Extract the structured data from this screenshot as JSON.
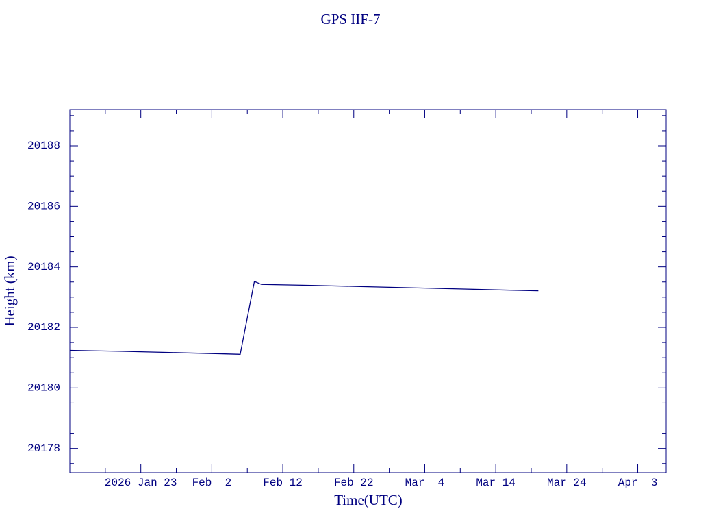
{
  "chart_data": {
    "type": "line",
    "title": "GPS IIF-7",
    "xlabel": "Time(UTC)",
    "ylabel": "Height (km)",
    "x": [
      "2026-01-13",
      "2026-01-20",
      "2026-01-27",
      "2026-02-03",
      "2026-02-06",
      "2026-02-08",
      "2026-02-09",
      "2026-02-16",
      "2026-02-23",
      "2026-03-02",
      "2026-03-09",
      "2026-03-16",
      "2026-03-20"
    ],
    "series": [
      {
        "color": "#000080",
        "values": [
          20181.24,
          20181.21,
          20181.17,
          20181.13,
          20181.11,
          20183.52,
          20183.42,
          20183.39,
          20183.35,
          20183.31,
          20183.27,
          20183.23,
          20183.21
        ]
      }
    ],
    "xlim": [
      "2026-01-13",
      "2026-04-07"
    ],
    "xticks": [
      {
        "value": "2026-01-23",
        "label": "2026 Jan 23"
      },
      {
        "value": "2026-02-02",
        "label": "Feb  2"
      },
      {
        "value": "2026-02-12",
        "label": "Feb 12"
      },
      {
        "value": "2026-02-22",
        "label": "Feb 22"
      },
      {
        "value": "2026-03-04",
        "label": "Mar  4"
      },
      {
        "value": "2026-03-14",
        "label": "Mar 14"
      },
      {
        "value": "2026-03-24",
        "label": "Mar 24"
      },
      {
        "value": "2026-04-03",
        "label": "Apr  3"
      }
    ],
    "xminorticks": [
      "2026-01-18",
      "2026-01-28",
      "2026-02-07",
      "2026-02-17",
      "2026-02-27",
      "2026-03-09",
      "2026-03-19",
      "2026-03-29"
    ],
    "ylim": [
      20177.2,
      20189.2
    ],
    "yticks": [
      20178,
      20180,
      20182,
      20184,
      20186,
      20188
    ],
    "yminorticks": [
      20177.5,
      20178.5,
      20179,
      20179.5,
      20180.5,
      20181,
      20181.5,
      20182.5,
      20183,
      20183.5,
      20184.5,
      20185,
      20185.5,
      20186.5,
      20187,
      20187.5,
      20188.5,
      20189
    ]
  }
}
